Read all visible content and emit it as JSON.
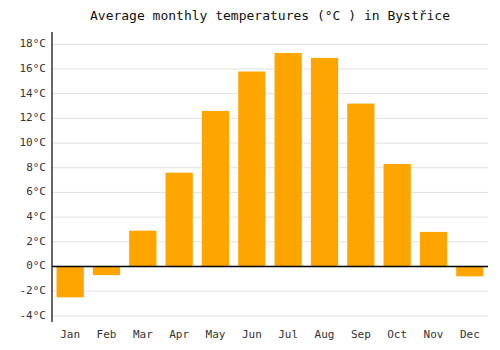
{
  "chart_data": {
    "type": "bar",
    "title": "Average monthly temperatures (°C ) in Bystřice",
    "categories": [
      "Jan",
      "Feb",
      "Mar",
      "Apr",
      "May",
      "Jun",
      "Jul",
      "Aug",
      "Sep",
      "Oct",
      "Nov",
      "Dec"
    ],
    "values": [
      -2.5,
      -0.7,
      2.9,
      7.6,
      12.6,
      15.8,
      17.3,
      16.9,
      13.2,
      8.3,
      2.8,
      -0.8
    ],
    "color": "#FFA500",
    "ylim": [
      -4.5,
      19
    ],
    "yticks": [
      {
        "value": -4,
        "label": "-4°C"
      },
      {
        "value": -2,
        "label": "-2°C"
      },
      {
        "value": 0,
        "label": "0°C"
      },
      {
        "value": 2,
        "label": "2°C"
      },
      {
        "value": 4,
        "label": "4°C"
      },
      {
        "value": 6,
        "label": "6°C"
      },
      {
        "value": 8,
        "label": "8°C"
      },
      {
        "value": 10,
        "label": "10°C"
      },
      {
        "value": 12,
        "label": "12°C"
      },
      {
        "value": 14,
        "label": "14°C"
      },
      {
        "value": 16,
        "label": "16°C"
      },
      {
        "value": 18,
        "label": "18°C"
      }
    ],
    "grid": true
  }
}
